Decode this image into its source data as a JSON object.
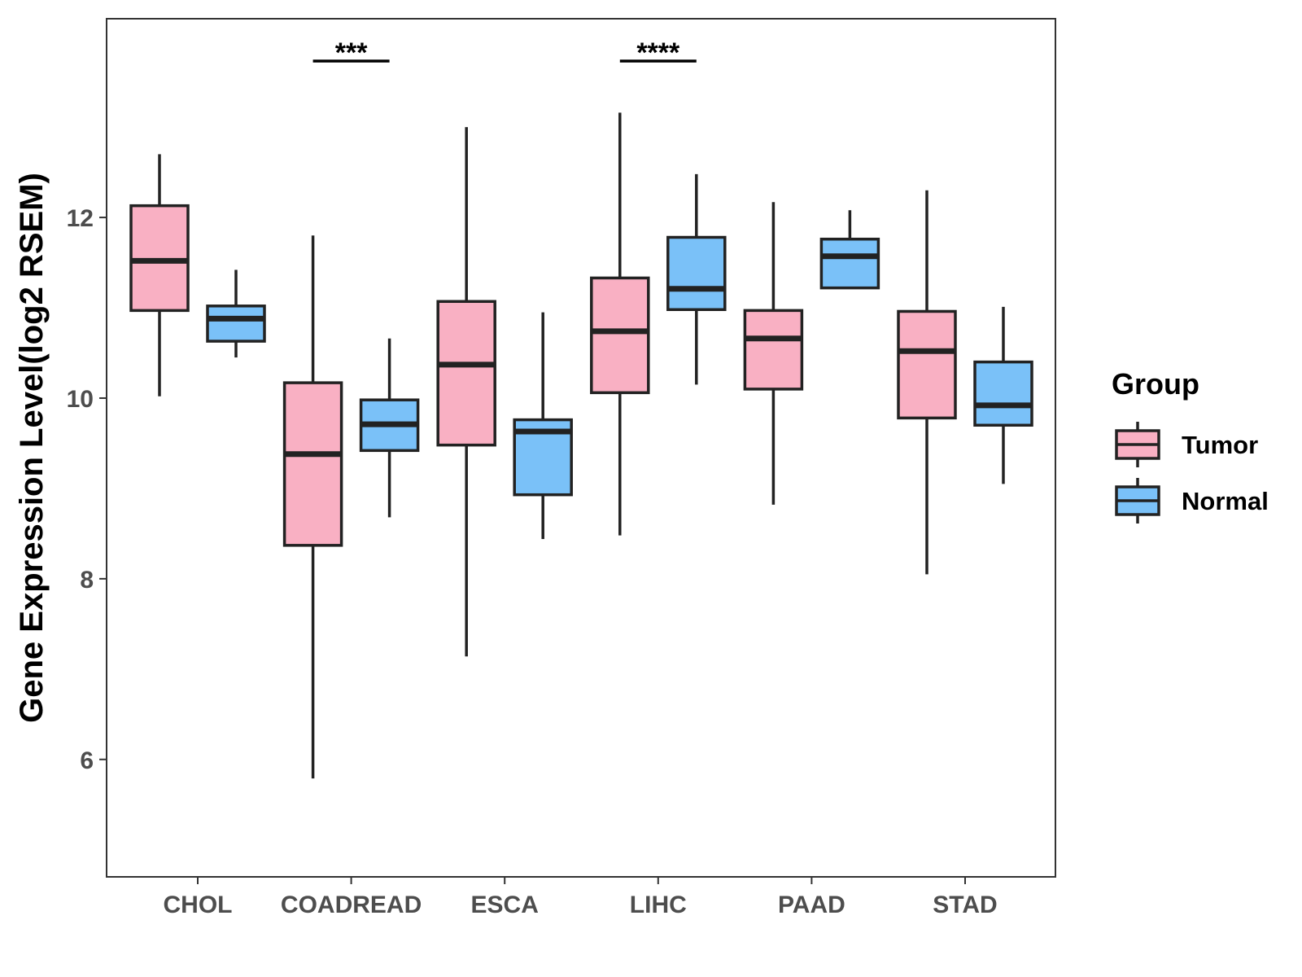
{
  "chart_data": {
    "type": "boxplot",
    "title": "",
    "xlabel": "",
    "ylabel": "Gene Expression Level(log2 RSEM)",
    "ylim": [
      4.7,
      14.2
    ],
    "yticks": [
      6,
      8,
      10,
      12
    ],
    "ytick_labels": [
      "6",
      "8",
      "10",
      "12"
    ],
    "categories": [
      "CHOL",
      "COADREAD",
      "ESCA",
      "LIHC",
      "PAAD",
      "STAD"
    ],
    "legend": {
      "title": "Group",
      "position": "right",
      "entries": [
        {
          "name": "Tumor",
          "color": "#F9B0C3"
        },
        {
          "name": "Normal",
          "color": "#7AC1F8"
        }
      ]
    },
    "series": [
      {
        "name": "Tumor",
        "color": "#F9B0C3",
        "boxes": [
          {
            "category": "CHOL",
            "min": 10.02,
            "q1": 10.97,
            "median": 11.52,
            "q3": 12.13,
            "max": 12.7
          },
          {
            "category": "COADREAD",
            "min": 5.79,
            "q1": 8.37,
            "median": 9.38,
            "q3": 10.17,
            "max": 11.8
          },
          {
            "category": "ESCA",
            "min": 7.14,
            "q1": 9.48,
            "median": 10.37,
            "q3": 11.07,
            "max": 13.0
          },
          {
            "category": "LIHC",
            "min": 8.48,
            "q1": 10.06,
            "median": 10.74,
            "q3": 11.33,
            "max": 13.16
          },
          {
            "category": "PAAD",
            "min": 8.82,
            "q1": 10.1,
            "median": 10.66,
            "q3": 10.97,
            "max": 12.17
          },
          {
            "category": "STAD",
            "min": 8.05,
            "q1": 9.78,
            "median": 10.52,
            "q3": 10.96,
            "max": 12.3
          }
        ]
      },
      {
        "name": "Normal",
        "color": "#7AC1F8",
        "boxes": [
          {
            "category": "CHOL",
            "min": 10.45,
            "q1": 10.63,
            "median": 10.88,
            "q3": 11.02,
            "max": 11.42
          },
          {
            "category": "COADREAD",
            "min": 8.68,
            "q1": 9.42,
            "median": 9.71,
            "q3": 9.98,
            "max": 10.66
          },
          {
            "category": "ESCA",
            "min": 8.44,
            "q1": 8.93,
            "median": 9.63,
            "q3": 9.76,
            "max": 10.95
          },
          {
            "category": "LIHC",
            "min": 10.15,
            "q1": 10.98,
            "median": 11.21,
            "q3": 11.78,
            "max": 12.48
          },
          {
            "category": "PAAD",
            "min": 11.22,
            "q1": 11.22,
            "median": 11.57,
            "q3": 11.76,
            "max": 12.08
          },
          {
            "category": "STAD",
            "min": 9.05,
            "q1": 9.7,
            "median": 9.92,
            "q3": 10.4,
            "max": 11.01
          }
        ]
      }
    ],
    "significance": [
      {
        "category": "COADREAD",
        "label": "***"
      },
      {
        "category": "LIHC",
        "label": "****"
      }
    ]
  }
}
